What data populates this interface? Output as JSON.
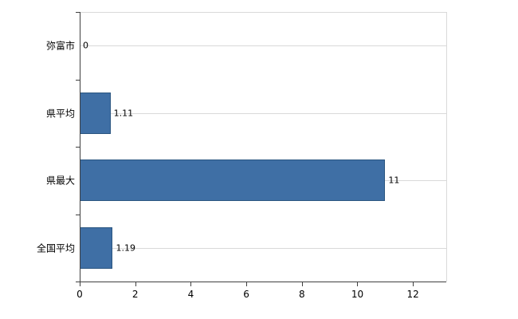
{
  "chart_data": {
    "type": "bar",
    "orientation": "horizontal",
    "title": "",
    "xlabel": "",
    "ylabel": "",
    "categories": [
      "弥富市",
      "県平均",
      "県最大",
      "全国平均"
    ],
    "values": [
      0,
      1.11,
      11,
      1.19
    ],
    "value_labels": [
      "0",
      "1.11",
      "11",
      "1.19"
    ],
    "xlim": [
      0,
      13.2
    ],
    "xticks": [
      0,
      2,
      4,
      6,
      8,
      10,
      12
    ],
    "xtick_labels": [
      "0",
      "2",
      "4",
      "6",
      "8",
      "10",
      "12"
    ],
    "grid": true,
    "legend": false,
    "colors": {
      "bar_fill": "#3f6fa5",
      "bar_border": "#2a5580",
      "axis": "#404040",
      "grid": "#d9d9d9",
      "text": "#000000",
      "background": "#ffffff"
    }
  }
}
